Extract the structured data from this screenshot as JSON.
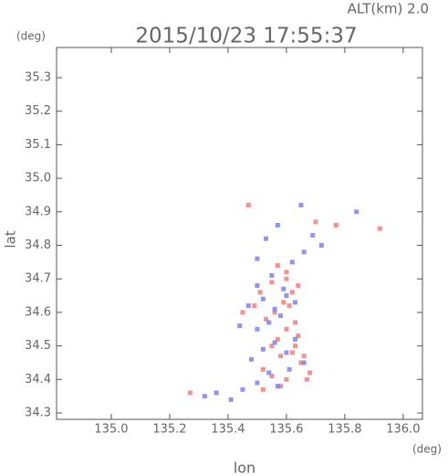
{
  "chart_data": {
    "type": "scatter",
    "title": "2015/10/23 17:55:37",
    "subtitle": "ALT(km) 2.0",
    "y_unit": "(deg)",
    "x_unit": "(deg)",
    "x_label": "lon",
    "y_label": "lat",
    "xlim": [
      134.8125,
      136.066
    ],
    "ylim": [
      34.281,
      35.39
    ],
    "xticks": [
      {
        "value": 135,
        "label": "135.0"
      },
      135.2,
      135.4,
      135.6,
      135.8,
      {
        "value": 136,
        "label": "136.0"
      }
    ],
    "yticks": [
      34.3,
      34.4,
      34.5,
      34.6,
      34.7,
      34.8,
      34.9,
      {
        "value": 35,
        "label": "35.0"
      },
      35.1,
      35.2,
      35.3
    ],
    "series": [
      {
        "color": "#f08080",
        "x": [
          135.27,
          135.47,
          135.52,
          135.55,
          135.58,
          135.6,
          135.62,
          135.65,
          135.68,
          135.57,
          135.6,
          135.63,
          135.66,
          135.53,
          135.56,
          135.59,
          135.62,
          135.51,
          135.55,
          135.6,
          135.64,
          135.57,
          135.61,
          135.7,
          135.77,
          135.92,
          135.49,
          135.63,
          135.58,
          135.52,
          135.67,
          135.45,
          135.6,
          135.55,
          135.64
        ],
        "y": [
          34.36,
          34.92,
          34.43,
          34.41,
          34.47,
          34.4,
          34.48,
          34.45,
          34.42,
          34.52,
          34.55,
          34.5,
          34.47,
          34.58,
          34.6,
          34.63,
          34.66,
          34.66,
          34.69,
          34.7,
          34.68,
          34.74,
          34.62,
          34.87,
          34.86,
          34.85,
          34.62,
          34.57,
          34.38,
          34.37,
          34.4,
          34.6,
          34.72,
          34.5,
          34.53
        ]
      },
      {
        "color": "#8080f0",
        "x": [
          135.32,
          135.41,
          135.45,
          135.5,
          135.54,
          135.57,
          135.61,
          135.66,
          135.48,
          135.52,
          135.56,
          135.6,
          135.63,
          135.5,
          135.54,
          135.58,
          135.44,
          135.47,
          135.52,
          135.56,
          135.6,
          135.63,
          135.5,
          135.55,
          135.59,
          135.62,
          135.69,
          135.72,
          135.84,
          135.53,
          135.65,
          135.5,
          135.57,
          135.66,
          135.36
        ],
        "y": [
          34.35,
          34.34,
          34.37,
          34.39,
          34.42,
          34.38,
          34.43,
          34.45,
          34.46,
          34.49,
          34.51,
          34.48,
          34.52,
          34.55,
          34.57,
          34.59,
          34.56,
          34.62,
          34.64,
          34.61,
          34.65,
          34.63,
          34.68,
          34.71,
          34.67,
          34.75,
          34.83,
          34.8,
          34.9,
          34.82,
          34.92,
          34.76,
          34.86,
          34.78,
          34.36
        ]
      }
    ]
  }
}
